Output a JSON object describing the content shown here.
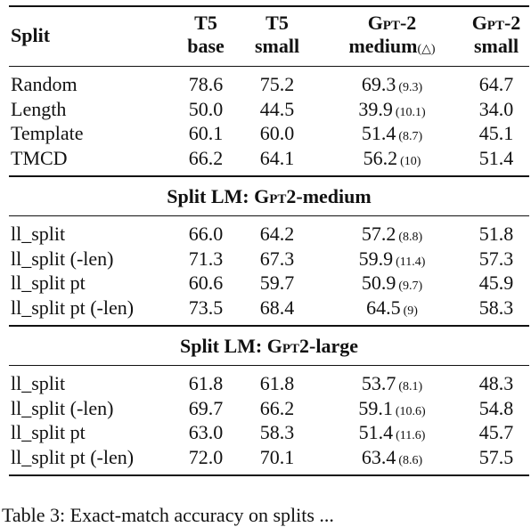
{
  "header": {
    "split": "Split",
    "col1": [
      "T5",
      "base"
    ],
    "col2": [
      "T5",
      "small"
    ],
    "col3_line1": "Gpt-2",
    "col3_line2": "medium",
    "col3_delta": "(△)",
    "col4": [
      "Gpt-2",
      "small"
    ]
  },
  "top_rows": [
    {
      "name": "Random",
      "v1": "78.6",
      "v2": "75.2",
      "v3": "69.3",
      "v3s": "(9.3)",
      "v4": "64.7"
    },
    {
      "name": "Length",
      "v1": "50.0",
      "v2": "44.5",
      "v3": "39.9",
      "v3s": "(10.1)",
      "v4": "34.0"
    },
    {
      "name": "Template",
      "v1": "60.1",
      "v2": "60.0",
      "v3": "51.4",
      "v3s": "(8.7)",
      "v4": "45.1"
    },
    {
      "name": "TMCD",
      "v1": "66.2",
      "v2": "64.1",
      "v3": "56.2",
      "v3s": "(10)",
      "v4": "51.4"
    }
  ],
  "sections": [
    {
      "title_prefix": "Split LM: ",
      "title_sc": "Gpt",
      "title_suffix": "2-medium",
      "rows": [
        {
          "name": "ll_split",
          "v1": "66.0",
          "v2": "64.2",
          "v3": "57.2",
          "v3s": "(8.8)",
          "v4": "51.8"
        },
        {
          "name": "ll_split (-len)",
          "v1": "71.3",
          "v2": "67.3",
          "v3": "59.9",
          "v3s": "(11.4)",
          "v4": "57.3"
        },
        {
          "name": "ll_split pt",
          "v1": "60.6",
          "v2": "59.7",
          "v3": "50.9",
          "v3s": "(9.7)",
          "v4": "45.9"
        },
        {
          "name": "ll_split pt (-len)",
          "v1": "73.5",
          "v2": "68.4",
          "v3": "64.5",
          "v3s": "(9)",
          "v4": "58.3"
        }
      ]
    },
    {
      "title_prefix": "Split LM: ",
      "title_sc": "Gpt",
      "title_suffix": "2-large",
      "rows": [
        {
          "name": "ll_split",
          "v1": "61.8",
          "v2": "61.8",
          "v3": "53.7",
          "v3s": "(8.1)",
          "v4": "48.3"
        },
        {
          "name": "ll_split (-len)",
          "v1": "69.7",
          "v2": "66.2",
          "v3": "59.1",
          "v3s": "(10.6)",
          "v4": "54.8"
        },
        {
          "name": "ll_split pt",
          "v1": "63.0",
          "v2": "58.3",
          "v3": "51.4",
          "v3s": "(11.6)",
          "v4": "45.7"
        },
        {
          "name": "ll_split pt (-len)",
          "v1": "72.0",
          "v2": "70.1",
          "v3": "63.4",
          "v3s": "(8.6)",
          "v4": "57.5"
        }
      ]
    }
  ],
  "caption": "Table 3:   Exact-match accuracy on splits ..."
}
